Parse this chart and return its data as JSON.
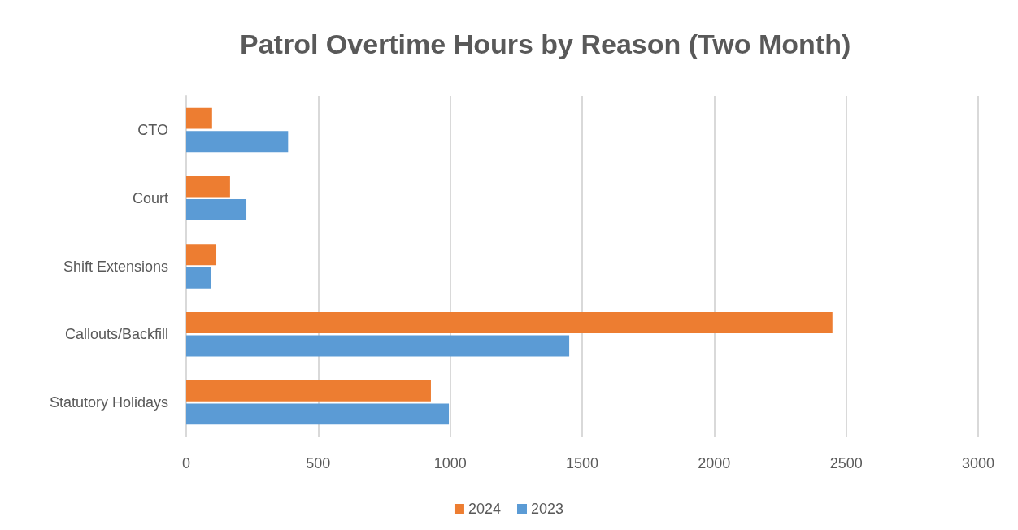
{
  "chart_data": {
    "type": "bar",
    "orientation": "horizontal",
    "title": "Patrol Overtime Hours by Reason (Two Month)",
    "categories": [
      "CTO",
      "Court",
      "Shift Extensions",
      "Callouts/Backfill",
      "Statutory Holidays"
    ],
    "series": [
      {
        "name": "2024",
        "color": "#ed7d31",
        "values": [
          98,
          166,
          114,
          2448,
          927
        ]
      },
      {
        "name": "2023",
        "color": "#5b9bd5",
        "values": [
          386,
          228,
          95,
          1451,
          995
        ]
      }
    ],
    "xlim": [
      0,
      3000
    ],
    "xticks": [
      0,
      500,
      1000,
      1500,
      2000,
      2500,
      3000
    ],
    "grid": "x",
    "legend": "bottom"
  }
}
